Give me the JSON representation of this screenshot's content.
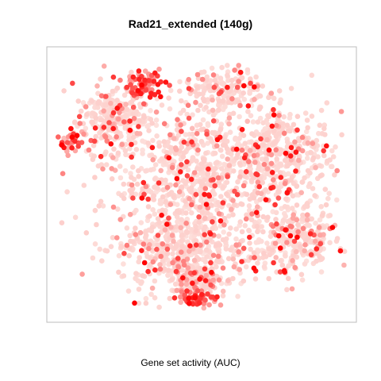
{
  "chart_data": {
    "type": "scatter",
    "title": "Rad21_extended (140g)",
    "xlabel": "Gene set activity (AUC)",
    "ylabel": "",
    "grid": false,
    "legend": "none",
    "color_scale": {
      "low": "#fde0dc",
      "mid": "#f08080",
      "high": "#ff0000"
    },
    "point_color_note": "",
    "clusters": [
      {
        "cx": 0.19,
        "cy": 0.74,
        "rx": 0.13,
        "ry": 0.13,
        "n": 260,
        "hot": 0.08
      },
      {
        "cx": 0.5,
        "cy": 0.5,
        "rx": 0.33,
        "ry": 0.3,
        "n": 900,
        "hot": 0.06
      },
      {
        "cx": 0.78,
        "cy": 0.62,
        "rx": 0.16,
        "ry": 0.18,
        "n": 320,
        "hot": 0.07
      },
      {
        "cx": 0.58,
        "cy": 0.86,
        "rx": 0.14,
        "ry": 0.08,
        "n": 170,
        "hot": 0.06
      },
      {
        "cx": 0.3,
        "cy": 0.88,
        "rx": 0.07,
        "ry": 0.05,
        "n": 80,
        "hot": 0.45
      },
      {
        "cx": 0.43,
        "cy": 0.22,
        "rx": 0.22,
        "ry": 0.16,
        "n": 420,
        "hot": 0.07
      },
      {
        "cx": 0.82,
        "cy": 0.28,
        "rx": 0.14,
        "ry": 0.14,
        "n": 260,
        "hot": 0.06
      },
      {
        "cx": 0.48,
        "cy": 0.12,
        "rx": 0.08,
        "ry": 0.06,
        "n": 90,
        "hot": 0.18
      },
      {
        "cx": 0.05,
        "cy": 0.66,
        "rx": 0.04,
        "ry": 0.04,
        "n": 30,
        "hot": 0.55
      },
      {
        "cx": 0.48,
        "cy": 0.05,
        "rx": 0.07,
        "ry": 0.03,
        "n": 60,
        "hot": 0.5
      }
    ]
  }
}
